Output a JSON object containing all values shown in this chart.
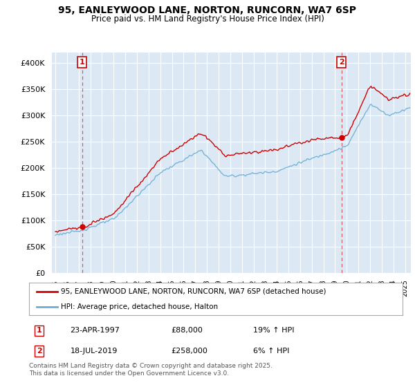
{
  "title": "95, EANLEYWOOD LANE, NORTON, RUNCORN, WA7 6SP",
  "subtitle": "Price paid vs. HM Land Registry's House Price Index (HPI)",
  "legend_line1": "95, EANLEYWOOD LANE, NORTON, RUNCORN, WA7 6SP (detached house)",
  "legend_line2": "HPI: Average price, detached house, Halton",
  "house_color": "#cc0000",
  "hpi_color": "#6baed6",
  "annotation1_label": "1",
  "annotation1_date": "23-APR-1997",
  "annotation1_price": "£88,000",
  "annotation1_hpi": "19% ↑ HPI",
  "annotation2_label": "2",
  "annotation2_date": "18-JUL-2019",
  "annotation2_price": "£258,000",
  "annotation2_hpi": "6% ↑ HPI",
  "footer": "Contains HM Land Registry data © Crown copyright and database right 2025.\nThis data is licensed under the Open Government Licence v3.0.",
  "ylim": [
    0,
    420000
  ],
  "yticks": [
    0,
    50000,
    100000,
    150000,
    200000,
    250000,
    300000,
    350000,
    400000
  ],
  "sale1_year": 1997.3,
  "sale1_price": 88000,
  "sale2_year": 2019.55,
  "sale2_price": 258000,
  "plot_bg_color": "#dce9f5",
  "background_color": "#ffffff",
  "grid_color": "#ffffff",
  "xmin": 1995.0,
  "xmax": 2025.5
}
